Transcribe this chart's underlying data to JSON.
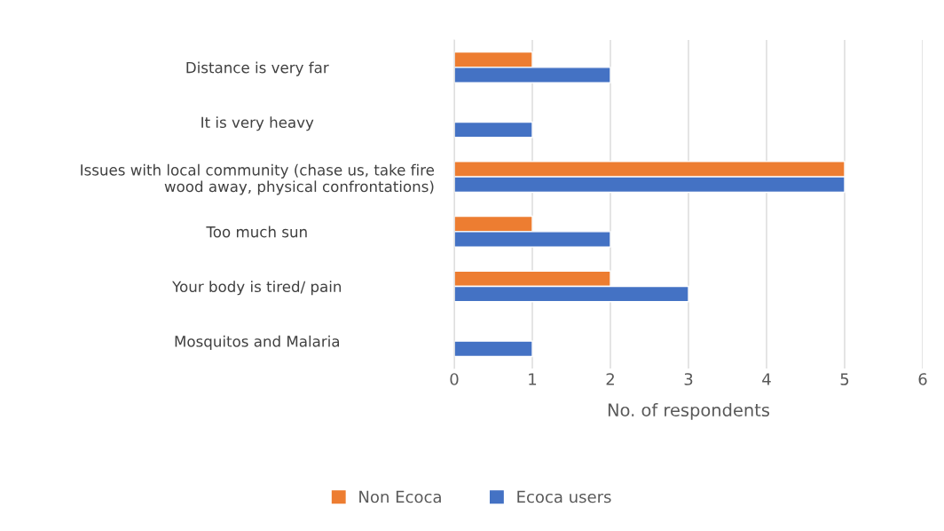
{
  "chart_data": {
    "type": "bar",
    "orientation": "horizontal",
    "xlabel": "No. of respondents",
    "categories": [
      "Distance is very far",
      "It is very heavy",
      "Issues with local community (chase us, take fire\nwood away, physical confrontations)",
      "Too much sun",
      "Your body is tired/ pain",
      "Mosquitos and Malaria"
    ],
    "series": [
      {
        "name": "Non Ecoca",
        "color": "#ed7d31",
        "values": [
          1,
          null,
          5,
          1,
          2,
          null
        ]
      },
      {
        "name": "Ecoca users",
        "color": "#4472c4",
        "values": [
          2,
          1,
          5,
          2,
          3,
          1
        ]
      }
    ],
    "xlim": [
      0,
      6
    ],
    "xticks": [
      0,
      1,
      2,
      3,
      4,
      5,
      6
    ],
    "grid": "x",
    "legend": "bottom"
  }
}
